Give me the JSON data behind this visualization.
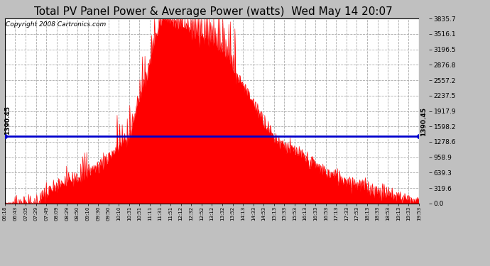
{
  "title": "Total PV Panel Power & Average Power (watts)  Wed May 14 20:07",
  "copyright": "Copyright 2008 Cartronics.com",
  "average_power": 1390.45,
  "avg_label": "1390.45",
  "y_max": 3835.7,
  "y_min": 0.0,
  "y_ticks": [
    0.0,
    319.6,
    639.3,
    958.9,
    1278.6,
    1598.2,
    1917.9,
    2237.5,
    2557.2,
    2876.8,
    3196.5,
    3516.1,
    3835.7
  ],
  "background_color": "#c0c0c0",
  "plot_bg_color": "#ffffff",
  "bar_color": "#ff0000",
  "avg_line_color": "#0000cc",
  "title_fontsize": 11,
  "copyright_fontsize": 6.5,
  "grid_color": "#aaaaaa",
  "x_labels": [
    "06:18",
    "06:43",
    "07:05",
    "07:29",
    "07:49",
    "08:09",
    "08:29",
    "08:50",
    "09:10",
    "09:30",
    "09:50",
    "10:10",
    "10:31",
    "10:51",
    "11:11",
    "11:31",
    "11:51",
    "12:12",
    "12:32",
    "12:52",
    "13:12",
    "13:32",
    "13:52",
    "14:13",
    "14:33",
    "14:53",
    "15:13",
    "15:33",
    "15:53",
    "16:13",
    "16:33",
    "16:53",
    "17:13",
    "17:33",
    "17:53",
    "18:13",
    "18:33",
    "18:53",
    "19:13",
    "19:33",
    "19:53"
  ]
}
